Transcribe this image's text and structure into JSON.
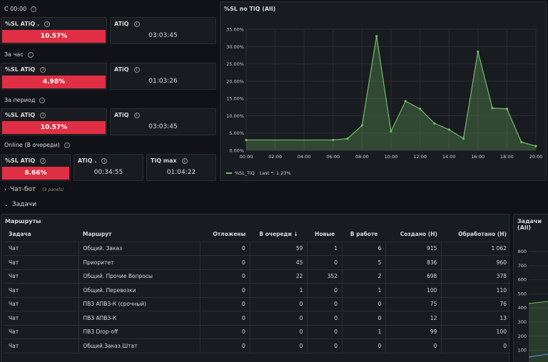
{
  "sections": {
    "since_midnight": "С 00:00",
    "last_hour": "За час",
    "period": "За период",
    "online": "Online (В очереди)"
  },
  "stats": {
    "sl_label": "%SL ATiQ .",
    "sl_label_plain": "%SL ATiQ",
    "atiq_label": "ATiQ",
    "atiq_label_dot": "ATiQ .",
    "tiq_max_label": "TiQ max",
    "since_midnight": {
      "sl": "10.57%",
      "atiq": "03:03:45"
    },
    "last_hour": {
      "sl": "4.98%",
      "atiq": "01:03:26"
    },
    "period": {
      "sl": "10.57%",
      "atiq": "03:03:45"
    },
    "online": {
      "sl": "8.66%",
      "atiq": "00:34:55",
      "tiq_max": "01:04:22"
    }
  },
  "chart_panel": {
    "title": "%SL по TiQ (All)",
    "legend": "%SL_TiQ",
    "legend_last": "Last *: 1.23%"
  },
  "chart_data": {
    "type": "area",
    "x": [
      "00:00",
      "06:00",
      "07:00",
      "08:00",
      "09:00",
      "10:00",
      "11:00",
      "12:00",
      "13:00",
      "14:00",
      "15:00",
      "16:00",
      "17:00",
      "18:00",
      "19:00",
      "20:00"
    ],
    "series": [
      {
        "name": "%SL_TiQ",
        "values": [
          3.0,
          3.0,
          3.4,
          7.2,
          33.0,
          5.5,
          14.2,
          12.0,
          7.8,
          6.0,
          3.4,
          28.5,
          12.2,
          12.0,
          2.4,
          1.23
        ]
      }
    ],
    "x_ticks": [
      "00:00",
      "02:00",
      "04:00",
      "06:00",
      "08:00",
      "10:00",
      "12:00",
      "14:00",
      "16:00",
      "18:00",
      "20:00"
    ],
    "y_ticks": [
      "0.00%",
      "5.00%",
      "10.00%",
      "15.00%",
      "20.00%",
      "25.00%",
      "30.00%",
      "35.00%"
    ],
    "ylim": [
      0,
      35
    ],
    "xlim": [
      0,
      20
    ],
    "color": "#73bf69"
  },
  "rows": {
    "chatbot": "Чат-бот",
    "chatbot_sub": "(3 panels)",
    "tasks": "Задачи"
  },
  "routes_panel": {
    "title": "Маршруты",
    "columns": [
      "Задача",
      "Маршрут",
      "Отложены",
      "В очереди ↓",
      "Новые",
      "В работе",
      "Создано (Н)",
      "Обработано (Н)"
    ],
    "rows": [
      [
        "Чат",
        "Общий. Заказ",
        "0",
        "59",
        "1",
        "6",
        "915",
        "1 062"
      ],
      [
        "Чат",
        "Приоритет",
        "0",
        "45",
        "0",
        "5",
        "836",
        "960"
      ],
      [
        "Чат",
        "Общий. Прочие Вопросы",
        "0",
        "22",
        "352",
        "2",
        "698",
        "378"
      ],
      [
        "Чат",
        "Общий. Перевозки",
        "0",
        "1",
        "0",
        "1",
        "100",
        "110"
      ],
      [
        "Чат",
        "ПВЗ АПВЗ-К (срочный)",
        "0",
        "0",
        "0",
        "0",
        "75",
        "76"
      ],
      [
        "Чат",
        "ПВЗ АПВЗ-К",
        "0",
        "0",
        "0",
        "0",
        "12",
        "13"
      ],
      [
        "Чат",
        "ПВЗ Drop-off",
        "0",
        "0",
        "0",
        "1",
        "99",
        "100"
      ],
      [
        "Чат",
        "Общий.Заказ.Штат",
        "0",
        "0",
        "0",
        "0",
        "0",
        "0"
      ]
    ]
  },
  "tasks_panel": {
    "title": "Задачи (All)",
    "y_ticks": [
      "800",
      "700",
      "600",
      "500",
      "400",
      "300",
      "200",
      "100"
    ]
  }
}
